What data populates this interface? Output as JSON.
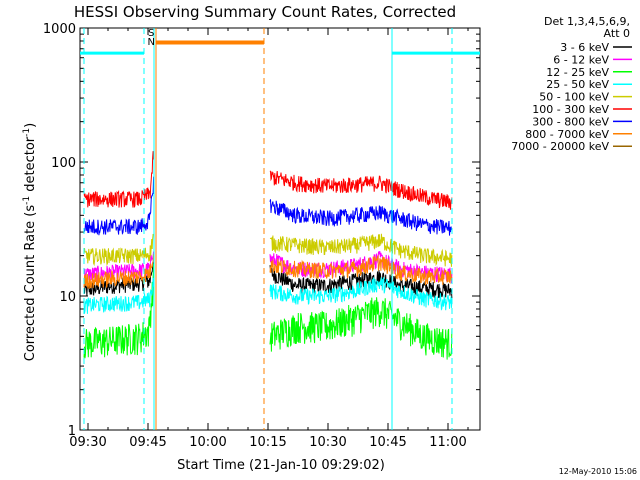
{
  "chart_data": {
    "type": "line",
    "title": "HESSI Observing Summary Count Rates, Corrected",
    "xlabel": "Start Time (21-Jan-10 09:29:02)",
    "ylabel_main": "Corrected Count Rate (s",
    "ylabel_mid": " detector",
    "ylabel_end": ")",
    "ylabel_sup": "-1",
    "yscale": "log",
    "ylim": [
      1,
      1000
    ],
    "xlim_minutes": [
      568,
      668
    ],
    "x_ticks": [
      {
        "label": "09:30",
        "minutes": 570
      },
      {
        "label": "09:45",
        "minutes": 585
      },
      {
        "label": "10:00",
        "minutes": 600
      },
      {
        "label": "10:15",
        "minutes": 615
      },
      {
        "label": "10:30",
        "minutes": 630
      },
      {
        "label": "10:45",
        "minutes": 645
      },
      {
        "label": "11:00",
        "minutes": 660
      }
    ],
    "y_ticks": [
      {
        "label": "1",
        "value": 1
      },
      {
        "label": "10",
        "value": 10
      },
      {
        "label": "100",
        "value": 100
      },
      {
        "label": "1000",
        "value": 1000
      }
    ],
    "legend_header": [
      "Det 1,3,4,5,6,9,",
      "Att 0"
    ],
    "legend_placement": "right",
    "series": [
      {
        "name": "3 - 6 keV",
        "color": "#000000",
        "pre": [
          [
            569,
            11
          ],
          [
            576,
            12
          ],
          [
            583,
            12.5
          ],
          [
            585.5,
            13
          ],
          [
            586.5,
            20
          ]
        ],
        "post": [
          [
            615.5,
            15
          ],
          [
            622,
            12
          ],
          [
            630,
            12
          ],
          [
            637,
            13
          ],
          [
            643,
            14
          ],
          [
            648,
            12
          ],
          [
            654,
            11.5
          ],
          [
            661,
            11
          ]
        ]
      },
      {
        "name": "6 - 12 keV",
        "color": "#ff00ff",
        "pre": [
          [
            569,
            14.5
          ],
          [
            576,
            15
          ],
          [
            583,
            15.5
          ],
          [
            585.5,
            16
          ],
          [
            586.5,
            25
          ]
        ],
        "post": [
          [
            615.5,
            19
          ],
          [
            622,
            16
          ],
          [
            630,
            16
          ],
          [
            637,
            17
          ],
          [
            643,
            19
          ],
          [
            648,
            16
          ],
          [
            654,
            15
          ],
          [
            661,
            14.5
          ]
        ]
      },
      {
        "name": "12 - 25 keV",
        "color": "#00ff00",
        "pre": [
          [
            569,
            4.5
          ],
          [
            576,
            4.7
          ],
          [
            583,
            5
          ],
          [
            585.2,
            5.5
          ],
          [
            586.5,
            15
          ]
        ],
        "post": [
          [
            615.5,
            5
          ],
          [
            622,
            6
          ],
          [
            630,
            6
          ],
          [
            637,
            7
          ],
          [
            643,
            8
          ],
          [
            648,
            6.5
          ],
          [
            654,
            5
          ],
          [
            661,
            4.5
          ]
        ]
      },
      {
        "name": "25 - 50 keV",
        "color": "#00ffff",
        "pre": [
          [
            569,
            8.5
          ],
          [
            576,
            8.8
          ],
          [
            583,
            9
          ],
          [
            585.5,
            9.5
          ],
          [
            586.5,
            14
          ]
        ],
        "post": [
          [
            615.5,
            11
          ],
          [
            622,
            10
          ],
          [
            630,
            10
          ],
          [
            637,
            11
          ],
          [
            643,
            12.5
          ],
          [
            648,
            11
          ],
          [
            654,
            9.5
          ],
          [
            661,
            9
          ]
        ]
      },
      {
        "name": "50 - 100 keV",
        "color": "#cccc00",
        "pre": [
          [
            569,
            20
          ],
          [
            576,
            20
          ],
          [
            583,
            20
          ],
          [
            585.5,
            21
          ],
          [
            586.5,
            30
          ]
        ],
        "post": [
          [
            615.5,
            25
          ],
          [
            622,
            24
          ],
          [
            630,
            23
          ],
          [
            637,
            24
          ],
          [
            643,
            26
          ],
          [
            648,
            22
          ],
          [
            654,
            20
          ],
          [
            661,
            19
          ]
        ]
      },
      {
        "name": "100 - 300 keV",
        "color": "#ff0000",
        "pre": [
          [
            569,
            53
          ],
          [
            576,
            53
          ],
          [
            583,
            53
          ],
          [
            585.5,
            58
          ],
          [
            586.5,
            125
          ]
        ],
        "post": [
          [
            615.5,
            78
          ],
          [
            622,
            70
          ],
          [
            630,
            66
          ],
          [
            637,
            68
          ],
          [
            643,
            70
          ],
          [
            648,
            62
          ],
          [
            654,
            55
          ],
          [
            661,
            50
          ]
        ]
      },
      {
        "name": "300 - 800 keV",
        "color": "#0000ff",
        "pre": [
          [
            569,
            33
          ],
          [
            576,
            33
          ],
          [
            583,
            33
          ],
          [
            585.5,
            37
          ],
          [
            586.5,
            80
          ]
        ],
        "post": [
          [
            615.5,
            48
          ],
          [
            622,
            40
          ],
          [
            630,
            38
          ],
          [
            637,
            40
          ],
          [
            643,
            42
          ],
          [
            648,
            38
          ],
          [
            654,
            34
          ],
          [
            661,
            32
          ]
        ]
      },
      {
        "name": "800 - 7000 keV",
        "color": "#ff8000",
        "pre": [
          [
            569,
            13
          ],
          [
            576,
            13.5
          ],
          [
            583,
            14
          ],
          [
            585.5,
            15
          ],
          [
            586.5,
            22
          ]
        ],
        "post": [
          [
            615.5,
            17
          ],
          [
            622,
            16
          ],
          [
            630,
            15.5
          ],
          [
            637,
            16
          ],
          [
            643,
            18
          ],
          [
            648,
            15
          ],
          [
            654,
            14
          ],
          [
            661,
            14
          ]
        ]
      },
      {
        "name": "7000 - 20000 keV",
        "color": "#996600",
        "pre": [],
        "post": []
      }
    ],
    "attenuator_bar": {
      "from": 587,
      "to": 614,
      "value": 780,
      "color": "#ff8000"
    },
    "observing_bars": [
      {
        "from": 568,
        "to": 584,
        "value": 650,
        "color": "#00ffff"
      },
      {
        "from": 646,
        "to": 668,
        "value": 650,
        "color": "#00ffff"
      }
    ],
    "vertical_markers": [
      {
        "at": 569,
        "style": "dashed",
        "color": "#00ffff"
      },
      {
        "at": 584,
        "style": "dashed",
        "color": "#00ffff"
      },
      {
        "at": 586.5,
        "style": "solid",
        "color": "#00ffff"
      },
      {
        "at": 587,
        "style": "solid",
        "color": "#ff8000"
      },
      {
        "at": 614,
        "style": "dashed",
        "color": "#ff8000"
      },
      {
        "at": 646,
        "style": "solid",
        "color": "#00ffff"
      },
      {
        "at": 661,
        "style": "dashed",
        "color": "#00ffff"
      }
    ],
    "flags": [
      {
        "label": "S",
        "color": "#ff8000",
        "at": 585.8,
        "value": 870
      },
      {
        "label": "N",
        "color": "#00ffff",
        "at": 585.8,
        "value": 745
      }
    ]
  },
  "footer": {
    "date": "12-May-2010 15:06"
  }
}
